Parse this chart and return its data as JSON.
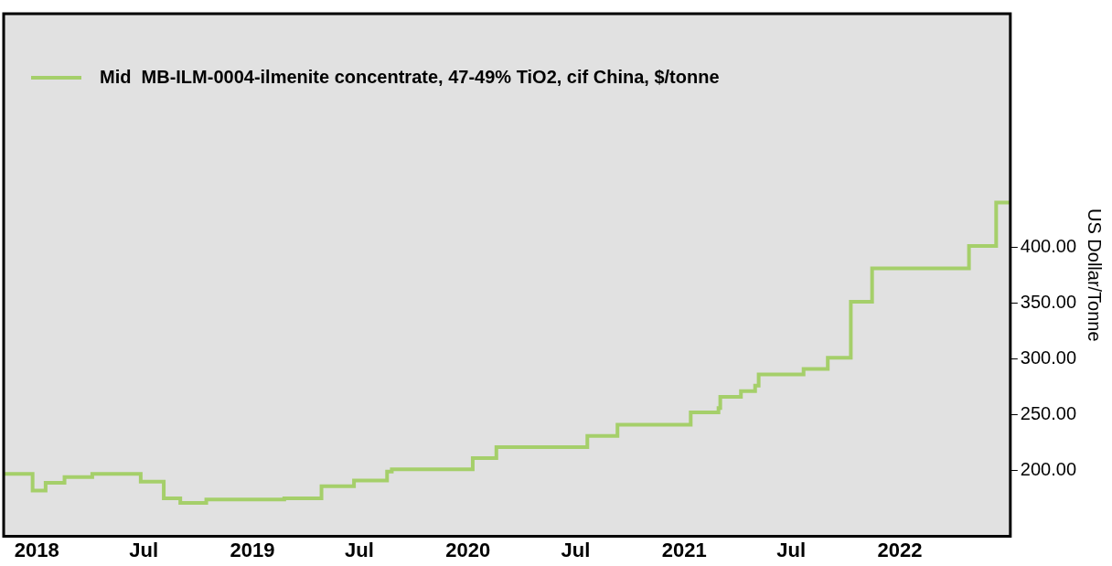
{
  "chart_data": {
    "type": "step",
    "ylabel": "US Dollar/Tonne",
    "legend": "top left",
    "grid": false,
    "x": [
      "2017-11-06",
      "2017-12-25",
      "2018-01-16",
      "2018-02-17",
      "2018-04-05",
      "2018-06-26",
      "2018-08-04",
      "2018-09-01",
      "2018-10-15",
      "2019-02-24",
      "2019-04-28",
      "2019-06-22",
      "2019-08-17",
      "2019-08-25",
      "2020-01-09",
      "2020-02-18",
      "2020-07-21",
      "2020-09-10",
      "2021-01-12",
      "2021-02-28",
      "2021-03-03",
      "2021-04-07",
      "2021-05-01",
      "2021-05-07",
      "2021-07-22",
      "2021-09-01",
      "2021-10-10",
      "2021-11-15",
      "2022-04-28",
      "2022-06-13",
      "2022-07-07"
    ],
    "series": [
      {
        "name": "Mid  MB-ILM-0004-ilmenite concentrate, 47-49% TiO2, cif China, $/tonne",
        "color": "#a5cf6a",
        "values": [
          197,
          182,
          189,
          194,
          197,
          190,
          175,
          171,
          174,
          175,
          186,
          191,
          199,
          201,
          211,
          221,
          231,
          241,
          252,
          256,
          266,
          271,
          276,
          286,
          291,
          301,
          351,
          381,
          401,
          440,
          440
        ]
      }
    ],
    "xlim": [
      "2017-11-06",
      "2022-07-07"
    ],
    "xticks": [
      {
        "value": "2018-01-01",
        "label": "2018"
      },
      {
        "value": "2018-07-01",
        "label": "Jul"
      },
      {
        "value": "2019-01-01",
        "label": "2019"
      },
      {
        "value": "2019-07-01",
        "label": "Jul"
      },
      {
        "value": "2020-01-01",
        "label": "2020"
      },
      {
        "value": "2020-07-01",
        "label": "Jul"
      },
      {
        "value": "2021-01-01",
        "label": "2021"
      },
      {
        "value": "2021-07-01",
        "label": "Jul"
      },
      {
        "value": "2022-01-01",
        "label": "2022"
      }
    ],
    "ylim": [
      141,
      609
    ],
    "yticks": [
      {
        "value": 200,
        "label": "200.00"
      },
      {
        "value": 250,
        "label": "250.00"
      },
      {
        "value": 300,
        "label": "300.00"
      },
      {
        "value": 350,
        "label": "350.00"
      },
      {
        "value": 400,
        "label": "400.00"
      }
    ]
  }
}
